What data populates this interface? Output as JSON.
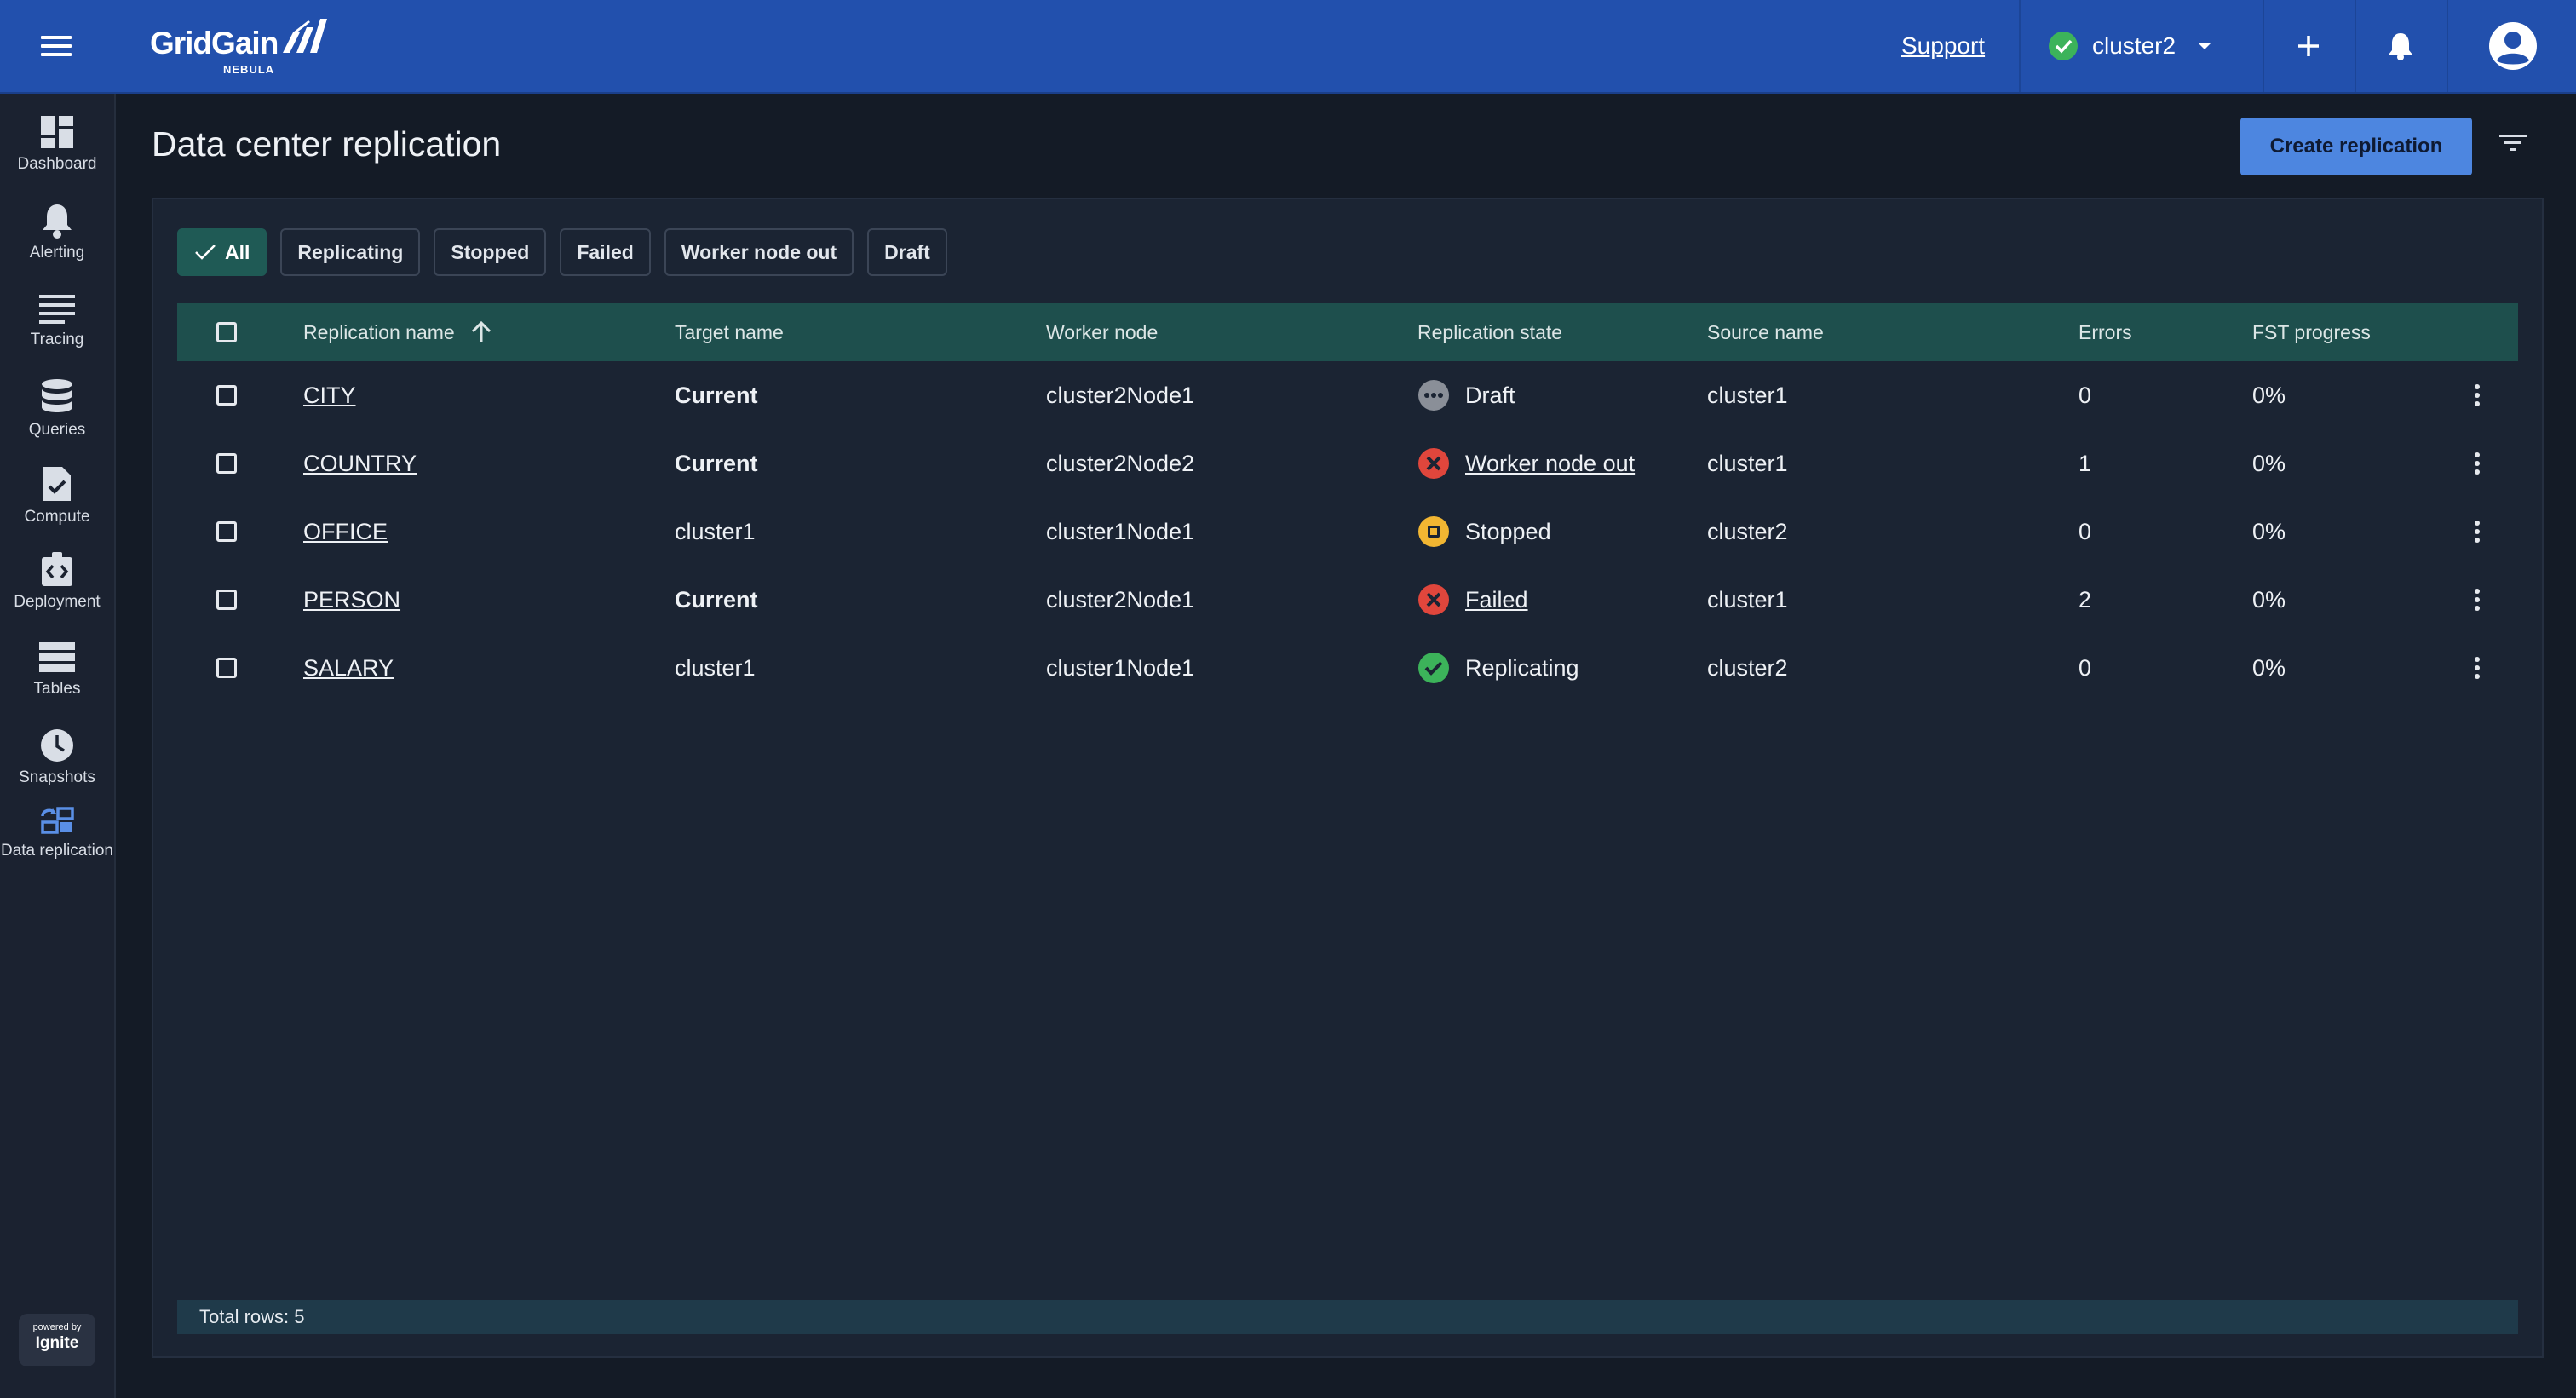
{
  "app": {
    "logo_text": "GridGain",
    "logo_sub": "NEBULA",
    "support_label": "Support",
    "cluster_name": "cluster2",
    "cluster_status_color": "#3cb35a"
  },
  "sidebar": {
    "items": [
      {
        "label": "Dashboard",
        "icon": "dashboard-icon"
      },
      {
        "label": "Alerting",
        "icon": "bell-icon"
      },
      {
        "label": "Tracing",
        "icon": "list-icon"
      },
      {
        "label": "Queries",
        "icon": "database-icon"
      },
      {
        "label": "Compute",
        "icon": "compute-icon"
      },
      {
        "label": "Deployment",
        "icon": "deployment-icon"
      },
      {
        "label": "Tables",
        "icon": "tables-icon"
      },
      {
        "label": "Snapshots",
        "icon": "clock-icon"
      },
      {
        "label": "Data replication",
        "icon": "replication-icon"
      }
    ],
    "powered_by": "powered by",
    "powered_brand": "Ignite"
  },
  "page": {
    "title": "Data center replication",
    "create_button": "Create replication"
  },
  "filters": {
    "chips": [
      "All",
      "Replicating",
      "Stopped",
      "Failed",
      "Worker node out",
      "Draft"
    ],
    "selected": "All"
  },
  "table": {
    "columns": [
      "Replication name",
      "Target name",
      "Worker node",
      "Replication state",
      "Source name",
      "Errors",
      "FST progress"
    ],
    "sort_column": "Replication name",
    "sort_direction": "ascending",
    "rows": [
      {
        "name": "CITY",
        "target": "Current",
        "worker": "cluster2Node1",
        "state": "Draft",
        "state_kind": "draft",
        "source": "cluster1",
        "errors": "0",
        "progress": "0%"
      },
      {
        "name": "COUNTRY",
        "target": "Current",
        "worker": "cluster2Node2",
        "state": "Worker node out",
        "state_kind": "error",
        "source": "cluster1",
        "errors": "1",
        "progress": "0%"
      },
      {
        "name": "OFFICE",
        "target": "cluster1",
        "worker": "cluster1Node1",
        "state": "Stopped",
        "state_kind": "stopped",
        "source": "cluster2",
        "errors": "0",
        "progress": "0%"
      },
      {
        "name": "PERSON",
        "target": "Current",
        "worker": "cluster2Node1",
        "state": "Failed",
        "state_kind": "error",
        "source": "cluster1",
        "errors": "2",
        "progress": "0%"
      },
      {
        "name": "SALARY",
        "target": "cluster1",
        "worker": "cluster1Node1",
        "state": "Replicating",
        "state_kind": "ok",
        "source": "cluster2",
        "errors": "0",
        "progress": "0%"
      }
    ],
    "total_rows_label": "Total rows: 5"
  },
  "colors": {
    "topbar": "#2250ad",
    "accent": "#4d86e0",
    "table_header": "#1e4f4d",
    "status_ok": "#3cb35a",
    "status_error": "#e0463c",
    "status_stopped": "#f2b632",
    "status_draft": "#8a8f98"
  }
}
